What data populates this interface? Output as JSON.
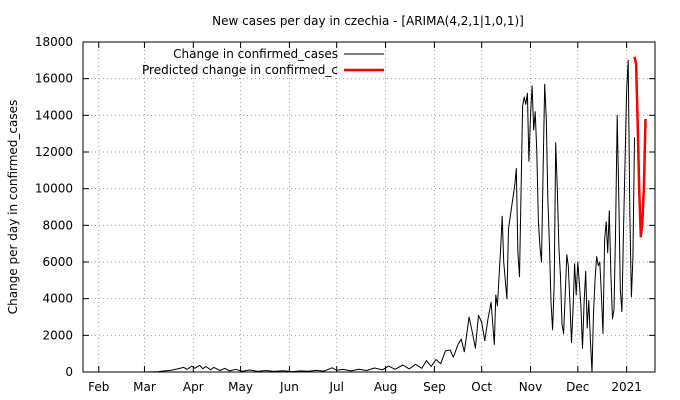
{
  "chart_data": {
    "type": "line",
    "title": "New cases per day in czechia -  [ARIMA(4,2,1|1,0,1)]",
    "xlabel": "",
    "ylabel": "Change per day in confirmed_cases",
    "ylim": [
      0,
      18000
    ],
    "xlim": [
      "2020-01-22",
      "2021-01-19"
    ],
    "grid": true,
    "legend_position": "top-right",
    "y_ticks": [
      {
        "value": 0,
        "label": "0"
      },
      {
        "value": 2000,
        "label": "2000"
      },
      {
        "value": 4000,
        "label": "4000"
      },
      {
        "value": 6000,
        "label": "6000"
      },
      {
        "value": 8000,
        "label": "8000"
      },
      {
        "value": 10000,
        "label": "10000"
      },
      {
        "value": 12000,
        "label": "12000"
      },
      {
        "value": 14000,
        "label": "14000"
      },
      {
        "value": 16000,
        "label": "16000"
      },
      {
        "value": 18000,
        "label": "18000"
      }
    ],
    "x_ticks": [
      {
        "date": "2020-02-01",
        "label": "Feb"
      },
      {
        "date": "2020-03-01",
        "label": "Mar"
      },
      {
        "date": "2020-04-01",
        "label": "Apr"
      },
      {
        "date": "2020-05-01",
        "label": "May"
      },
      {
        "date": "2020-06-01",
        "label": "Jun"
      },
      {
        "date": "2020-07-01",
        "label": "Jul"
      },
      {
        "date": "2020-08-01",
        "label": "Aug"
      },
      {
        "date": "2020-09-01",
        "label": "Sep"
      },
      {
        "date": "2020-10-01",
        "label": "Oct"
      },
      {
        "date": "2020-11-01",
        "label": "Nov"
      },
      {
        "date": "2020-12-01",
        "label": "Dec"
      },
      {
        "date": "2021-01-01",
        "label": "2021"
      }
    ],
    "series": [
      {
        "name": "Change in confirmed_cases",
        "color": "#000000",
        "points": [
          [
            "2020-03-01",
            0
          ],
          [
            "2020-03-10",
            20
          ],
          [
            "2020-03-14",
            60
          ],
          [
            "2020-03-18",
            100
          ],
          [
            "2020-03-22",
            170
          ],
          [
            "2020-03-26",
            250
          ],
          [
            "2020-03-28",
            140
          ],
          [
            "2020-03-31",
            320
          ],
          [
            "2020-04-02",
            200
          ],
          [
            "2020-04-05",
            360
          ],
          [
            "2020-04-07",
            180
          ],
          [
            "2020-04-09",
            300
          ],
          [
            "2020-04-12",
            120
          ],
          [
            "2020-04-14",
            250
          ],
          [
            "2020-04-18",
            80
          ],
          [
            "2020-04-21",
            200
          ],
          [
            "2020-04-24",
            60
          ],
          [
            "2020-04-28",
            150
          ],
          [
            "2020-05-02",
            40
          ],
          [
            "2020-05-07",
            110
          ],
          [
            "2020-05-12",
            30
          ],
          [
            "2020-05-17",
            80
          ],
          [
            "2020-05-22",
            30
          ],
          [
            "2020-05-28",
            70
          ],
          [
            "2020-06-03",
            20
          ],
          [
            "2020-06-08",
            60
          ],
          [
            "2020-06-13",
            40
          ],
          [
            "2020-06-18",
            90
          ],
          [
            "2020-06-23",
            50
          ],
          [
            "2020-06-28",
            230
          ],
          [
            "2020-07-01",
            100
          ],
          [
            "2020-07-05",
            140
          ],
          [
            "2020-07-10",
            60
          ],
          [
            "2020-07-15",
            150
          ],
          [
            "2020-07-20",
            80
          ],
          [
            "2020-07-25",
            220
          ],
          [
            "2020-07-30",
            120
          ],
          [
            "2020-08-03",
            320
          ],
          [
            "2020-08-07",
            150
          ],
          [
            "2020-08-12",
            380
          ],
          [
            "2020-08-16",
            170
          ],
          [
            "2020-08-20",
            420
          ],
          [
            "2020-08-24",
            200
          ],
          [
            "2020-08-27",
            620
          ],
          [
            "2020-08-30",
            300
          ],
          [
            "2020-09-02",
            680
          ],
          [
            "2020-09-05",
            450
          ],
          [
            "2020-09-08",
            1150
          ],
          [
            "2020-09-11",
            1200
          ],
          [
            "2020-09-13",
            800
          ],
          [
            "2020-09-16",
            1500
          ],
          [
            "2020-09-18",
            1800
          ],
          [
            "2020-09-20",
            1100
          ],
          [
            "2020-09-23",
            3000
          ],
          [
            "2020-09-25",
            2200
          ],
          [
            "2020-09-27",
            1300
          ],
          [
            "2020-09-29",
            3100
          ],
          [
            "2020-10-01",
            2700
          ],
          [
            "2020-10-03",
            1700
          ],
          [
            "2020-10-05",
            2900
          ],
          [
            "2020-10-07",
            3800
          ],
          [
            "2020-10-09",
            1500
          ],
          [
            "2020-10-10",
            4200
          ],
          [
            "2020-10-11",
            3600
          ],
          [
            "2020-10-13",
            6700
          ],
          [
            "2020-10-14",
            8500
          ],
          [
            "2020-10-15",
            6000
          ],
          [
            "2020-10-17",
            4000
          ],
          [
            "2020-10-18",
            7800
          ],
          [
            "2020-10-20",
            9000
          ],
          [
            "2020-10-22",
            10200
          ],
          [
            "2020-10-23",
            11100
          ],
          [
            "2020-10-24",
            6500
          ],
          [
            "2020-10-25",
            5200
          ],
          [
            "2020-10-26",
            10000
          ],
          [
            "2020-10-27",
            14500
          ],
          [
            "2020-10-28",
            15000
          ],
          [
            "2020-10-29",
            14600
          ],
          [
            "2020-10-30",
            15200
          ],
          [
            "2020-10-31",
            11500
          ],
          [
            "2020-11-01",
            14000
          ],
          [
            "2020-11-02",
            15600
          ],
          [
            "2020-11-03",
            13200
          ],
          [
            "2020-11-04",
            14200
          ],
          [
            "2020-11-05",
            12000
          ],
          [
            "2020-11-06",
            8200
          ],
          [
            "2020-11-07",
            6800
          ],
          [
            "2020-11-08",
            6000
          ],
          [
            "2020-11-09",
            11000
          ],
          [
            "2020-11-10",
            15700
          ],
          [
            "2020-11-11",
            13800
          ],
          [
            "2020-11-12",
            9500
          ],
          [
            "2020-11-13",
            7000
          ],
          [
            "2020-11-14",
            3800
          ],
          [
            "2020-11-15",
            2300
          ],
          [
            "2020-11-16",
            4800
          ],
          [
            "2020-11-17",
            12500
          ],
          [
            "2020-11-18",
            10000
          ],
          [
            "2020-11-19",
            6800
          ],
          [
            "2020-11-20",
            5200
          ],
          [
            "2020-11-21",
            2600
          ],
          [
            "2020-11-22",
            2100
          ],
          [
            "2020-11-23",
            4200
          ],
          [
            "2020-11-24",
            6400
          ],
          [
            "2020-11-25",
            5800
          ],
          [
            "2020-11-26",
            3800
          ],
          [
            "2020-11-27",
            1600
          ],
          [
            "2020-11-28",
            3500
          ],
          [
            "2020-11-29",
            5900
          ],
          [
            "2020-11-30",
            4200
          ],
          [
            "2020-12-01",
            6000
          ],
          [
            "2020-12-02",
            4800
          ],
          [
            "2020-12-03",
            3600
          ],
          [
            "2020-12-04",
            1300
          ],
          [
            "2020-12-05",
            3800
          ],
          [
            "2020-12-06",
            5500
          ],
          [
            "2020-12-07",
            2400
          ],
          [
            "2020-12-08",
            3900
          ],
          [
            "2020-12-09",
            1700
          ],
          [
            "2020-12-10",
            0
          ],
          [
            "2020-12-11",
            3200
          ],
          [
            "2020-12-12",
            5100
          ],
          [
            "2020-12-13",
            6300
          ],
          [
            "2020-12-14",
            5800
          ],
          [
            "2020-12-15",
            6000
          ],
          [
            "2020-12-16",
            4200
          ],
          [
            "2020-12-17",
            2100
          ],
          [
            "2020-12-18",
            7200
          ],
          [
            "2020-12-19",
            8200
          ],
          [
            "2020-12-20",
            6500
          ],
          [
            "2020-12-21",
            8800
          ],
          [
            "2020-12-22",
            5300
          ],
          [
            "2020-12-23",
            2900
          ],
          [
            "2020-12-24",
            3400
          ],
          [
            "2020-12-25",
            7800
          ],
          [
            "2020-12-26",
            14000
          ],
          [
            "2020-12-27",
            9500
          ],
          [
            "2020-12-28",
            4500
          ],
          [
            "2020-12-29",
            3300
          ],
          [
            "2020-12-30",
            7700
          ],
          [
            "2021-01-01",
            15300
          ],
          [
            "2021-01-02",
            17000
          ],
          [
            "2021-01-03",
            8800
          ],
          [
            "2021-01-04",
            4100
          ],
          [
            "2021-01-05",
            6200
          ],
          [
            "2021-01-06",
            12800
          ]
        ]
      },
      {
        "name": "Predicted change in confirmed_c",
        "color": "#ff0000",
        "points": [
          [
            "2021-01-06",
            17200
          ],
          [
            "2021-01-07",
            16800
          ],
          [
            "2021-01-08",
            13500
          ],
          [
            "2021-01-09",
            10000
          ],
          [
            "2021-01-10",
            7400
          ],
          [
            "2021-01-11",
            8200
          ],
          [
            "2021-01-12",
            10200
          ],
          [
            "2021-01-13",
            13800
          ]
        ]
      }
    ]
  }
}
